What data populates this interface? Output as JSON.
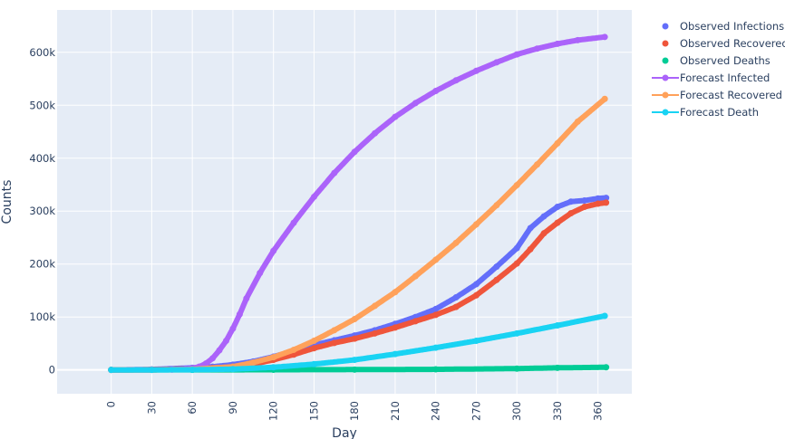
{
  "chart_data": {
    "type": "scatter",
    "title": "",
    "xlabel": "Day",
    "ylabel": "Counts",
    "xlim": [
      -40,
      385
    ],
    "ylim": [
      -45000,
      680000
    ],
    "grid": true,
    "legend_position": "top-right",
    "x_ticks": [
      0,
      30,
      60,
      90,
      120,
      150,
      180,
      210,
      240,
      270,
      300,
      330,
      360
    ],
    "x_tick_labels": [
      "0",
      "30",
      "60",
      "90",
      "120",
      "150",
      "180",
      "210",
      "240",
      "270",
      "300",
      "330",
      "360"
    ],
    "y_ticks": [
      0,
      100000,
      200000,
      300000,
      400000,
      500000,
      600000
    ],
    "y_tick_labels": [
      "0",
      "100k",
      "200k",
      "300k",
      "400k",
      "500k",
      "600k"
    ],
    "series": [
      {
        "name": "Observed Infections",
        "mode": "markers",
        "color": "#636efa",
        "x": [
          0,
          30,
          60,
          75,
          90,
          105,
          120,
          135,
          150,
          165,
          180,
          195,
          210,
          225,
          240,
          255,
          270,
          285,
          300,
          310,
          320,
          330,
          340,
          350,
          360,
          366
        ],
        "y": [
          0,
          1000,
          4000,
          6000,
          10000,
          16000,
          25000,
          36000,
          47000,
          56000,
          65000,
          75000,
          87000,
          100000,
          115000,
          137000,
          162000,
          195000,
          230000,
          268000,
          290000,
          308000,
          318000,
          320000,
          324000,
          325000
        ]
      },
      {
        "name": "Observed Recovered",
        "mode": "markers",
        "color": "#ef553b",
        "x": [
          0,
          30,
          60,
          75,
          90,
          105,
          120,
          135,
          150,
          165,
          180,
          195,
          210,
          225,
          240,
          255,
          270,
          285,
          300,
          310,
          320,
          330,
          340,
          350,
          360,
          366
        ],
        "y": [
          0,
          500,
          2000,
          3500,
          6000,
          11000,
          19000,
          29000,
          41000,
          51000,
          59000,
          69000,
          80000,
          92000,
          104000,
          119000,
          141000,
          170000,
          201000,
          228000,
          258000,
          278000,
          296000,
          308000,
          314000,
          316000
        ]
      },
      {
        "name": "Observed Deaths",
        "mode": "markers",
        "color": "#00cc96",
        "x": [
          0,
          60,
          120,
          180,
          240,
          300,
          330,
          366
        ],
        "y": [
          0,
          100,
          300,
          600,
          1100,
          2500,
          4000,
          5000
        ]
      },
      {
        "name": "Forecast Infected",
        "mode": "lines+markers",
        "color": "#ab63fa",
        "x": [
          0,
          30,
          45,
          55,
          60,
          65,
          70,
          75,
          80,
          85,
          90,
          95,
          100,
          110,
          120,
          135,
          150,
          165,
          180,
          195,
          210,
          225,
          240,
          255,
          270,
          285,
          300,
          315,
          330,
          345,
          365
        ],
        "y": [
          0,
          200,
          600,
          1500,
          3000,
          6000,
          12000,
          22000,
          37000,
          55000,
          78000,
          105000,
          135000,
          183000,
          225000,
          278000,
          327000,
          372000,
          412000,
          447000,
          478000,
          504000,
          527000,
          547000,
          565000,
          581000,
          596000,
          607000,
          616000,
          623000,
          629000
        ]
      },
      {
        "name": "Forecast Recovered",
        "mode": "lines+markers",
        "color": "#ffa15a",
        "x": [
          0,
          30,
          60,
          90,
          105,
          120,
          135,
          150,
          165,
          180,
          195,
          210,
          225,
          240,
          255,
          270,
          285,
          300,
          315,
          330,
          345,
          365
        ],
        "y": [
          0,
          100,
          1000,
          6000,
          14000,
          24000,
          38000,
          55000,
          75000,
          96000,
          121000,
          147000,
          177000,
          208000,
          240000,
          275000,
          311000,
          349000,
          388000,
          428000,
          469000,
          512000
        ]
      },
      {
        "name": "Forecast Death",
        "mode": "lines+markers",
        "color": "#19d3f3",
        "x": [
          0,
          30,
          60,
          90,
          120,
          150,
          180,
          210,
          240,
          270,
          300,
          330,
          365
        ],
        "y": [
          0,
          100,
          400,
          1500,
          5000,
          11000,
          19000,
          30000,
          42000,
          55000,
          69000,
          84000,
          102000
        ]
      }
    ]
  }
}
